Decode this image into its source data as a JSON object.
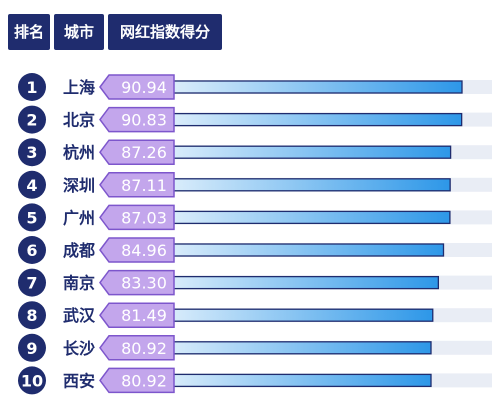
{
  "header": {
    "rank_label": "排名",
    "city_label": "城市",
    "score_label": "网红指数得分"
  },
  "colors": {
    "header_bg": "#1f2c6e",
    "badge": "#1f2c6e",
    "tag_fill": "#c3a6ec",
    "tag_stroke": "#7d56cc",
    "bar_start": "#ffffff",
    "bar_end": "#2d97e8",
    "track": "#e9edf5"
  },
  "chart_data": {
    "type": "bar",
    "orientation": "horizontal",
    "title": "",
    "xlabel": "",
    "ylabel": "",
    "categories": [
      "上海",
      "北京",
      "杭州",
      "深圳",
      "广州",
      "成都",
      "南京",
      "武汉",
      "长沙",
      "西安"
    ],
    "ranks": [
      "1",
      "2",
      "3",
      "4",
      "5",
      "6",
      "7",
      "8",
      "9",
      "10"
    ],
    "values": [
      90.94,
      90.83,
      87.26,
      87.11,
      87.03,
      84.96,
      83.3,
      81.49,
      80.92,
      80.92
    ],
    "value_labels": [
      "90.94",
      "90.83",
      "87.26",
      "87.11",
      "87.03",
      "84.96",
      "83.30",
      "81.49",
      "80.92",
      "80.92"
    ]
  }
}
